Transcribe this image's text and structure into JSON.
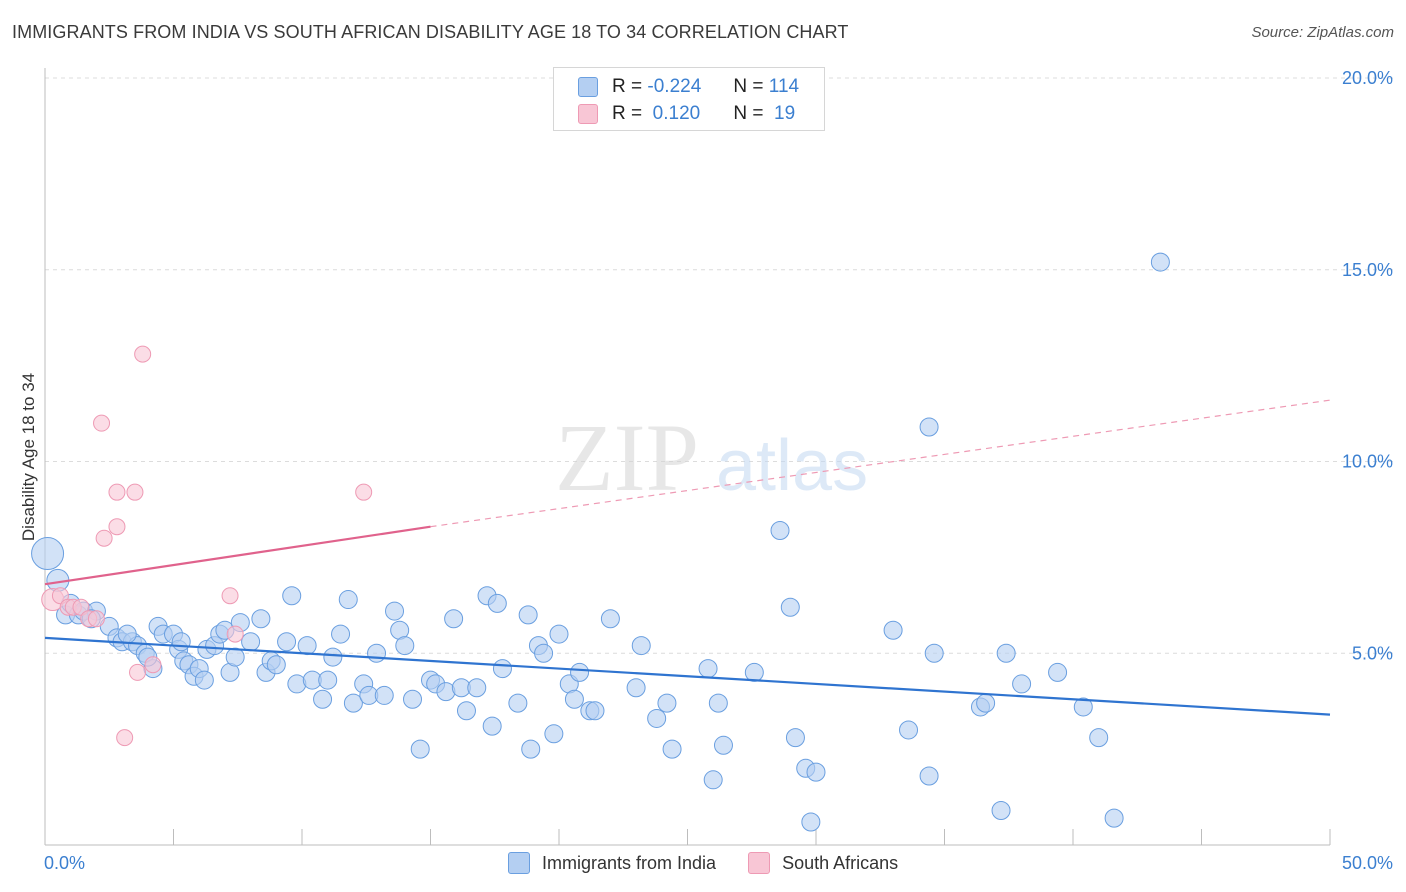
{
  "header": {
    "title": "IMMIGRANTS FROM INDIA VS SOUTH AFRICAN DISABILITY AGE 18 TO 34 CORRELATION CHART",
    "source": "Source: ZipAtlas.com"
  },
  "legend_box": {
    "rows": [
      {
        "r_label": "R =",
        "r_value": "-0.224",
        "n_label": "N =",
        "n_value": "114",
        "color": "#a9c8f0"
      },
      {
        "r_label": "R =",
        "r_value": " 0.120",
        "n_label": "N =",
        "n_value": " 19",
        "color": "#f5b8cb"
      }
    ]
  },
  "bottom_legend": {
    "india": "Immigrants from India",
    "sa": "South Africans"
  },
  "watermark": {
    "zip": "ZIP",
    "atlas": "atlas"
  },
  "chart_data": {
    "type": "scatter",
    "xlabel": "",
    "ylabel": "Disability Age 18 to 34",
    "xlim": [
      0,
      50
    ],
    "ylim": [
      0,
      20
    ],
    "x_tick_labels": [
      "0.0%",
      "50.0%"
    ],
    "y_tick_labels": [
      "5.0%",
      "10.0%",
      "15.0%",
      "20.0%"
    ],
    "y_ticks": [
      5,
      10,
      15,
      20
    ],
    "grid": true,
    "legend_position": "top-center",
    "colors": {
      "india": "#6a9fe0",
      "india_fill": "#b4cff2",
      "india_line": "#2f74d0",
      "sa": "#ee9ab4",
      "sa_fill": "#f8c6d5",
      "sa_line": "#e0628c"
    },
    "series": [
      {
        "name": "Immigrants from India",
        "trend": {
          "x": [
            0,
            50
          ],
          "y": [
            5.4,
            3.4
          ]
        },
        "points": [
          [
            0.1,
            7.6
          ],
          [
            0.5,
            6.9
          ],
          [
            0.8,
            6.0
          ],
          [
            1.0,
            6.3
          ],
          [
            1.3,
            6.0
          ],
          [
            1.5,
            6.1
          ],
          [
            2.0,
            6.1
          ],
          [
            2.5,
            5.7
          ],
          [
            2.8,
            5.4
          ],
          [
            3.0,
            5.3
          ],
          [
            3.4,
            5.3
          ],
          [
            3.6,
            5.2
          ],
          [
            3.9,
            5.0
          ],
          [
            4.2,
            4.6
          ],
          [
            4.4,
            5.7
          ],
          [
            4.6,
            5.5
          ],
          [
            5.0,
            5.5
          ],
          [
            5.2,
            5.1
          ],
          [
            5.4,
            4.8
          ],
          [
            5.6,
            4.7
          ],
          [
            5.8,
            4.4
          ],
          [
            6.0,
            4.6
          ],
          [
            6.3,
            5.1
          ],
          [
            6.6,
            5.2
          ],
          [
            6.8,
            5.5
          ],
          [
            7.0,
            5.6
          ],
          [
            7.2,
            4.5
          ],
          [
            7.4,
            4.9
          ],
          [
            7.6,
            5.8
          ],
          [
            8.0,
            5.3
          ],
          [
            8.4,
            5.9
          ],
          [
            8.6,
            4.5
          ],
          [
            8.8,
            4.8
          ],
          [
            9.0,
            4.7
          ],
          [
            9.4,
            5.3
          ],
          [
            9.6,
            6.5
          ],
          [
            9.8,
            4.2
          ],
          [
            10.2,
            5.2
          ],
          [
            10.4,
            4.3
          ],
          [
            10.8,
            3.8
          ],
          [
            11.0,
            4.3
          ],
          [
            11.2,
            4.9
          ],
          [
            11.5,
            5.5
          ],
          [
            11.8,
            6.4
          ],
          [
            12.0,
            3.7
          ],
          [
            12.4,
            4.2
          ],
          [
            12.6,
            3.9
          ],
          [
            12.9,
            5.0
          ],
          [
            13.2,
            3.9
          ],
          [
            13.6,
            6.1
          ],
          [
            13.8,
            5.6
          ],
          [
            14.0,
            5.2
          ],
          [
            14.3,
            3.8
          ],
          [
            14.6,
            2.5
          ],
          [
            15.0,
            4.3
          ],
          [
            15.2,
            4.2
          ],
          [
            15.6,
            4.0
          ],
          [
            15.9,
            5.9
          ],
          [
            16.2,
            4.1
          ],
          [
            16.4,
            3.5
          ],
          [
            16.8,
            4.1
          ],
          [
            17.2,
            6.5
          ],
          [
            17.4,
            3.1
          ],
          [
            17.6,
            6.3
          ],
          [
            17.8,
            4.6
          ],
          [
            18.4,
            3.7
          ],
          [
            18.8,
            6.0
          ],
          [
            18.9,
            2.5
          ],
          [
            19.2,
            5.2
          ],
          [
            19.4,
            5.0
          ],
          [
            19.8,
            2.9
          ],
          [
            20.0,
            5.5
          ],
          [
            20.4,
            4.2
          ],
          [
            20.6,
            3.8
          ],
          [
            20.8,
            4.5
          ],
          [
            21.2,
            3.5
          ],
          [
            21.4,
            3.5
          ],
          [
            22.0,
            5.9
          ],
          [
            23.0,
            4.1
          ],
          [
            23.2,
            5.2
          ],
          [
            23.8,
            3.3
          ],
          [
            24.2,
            3.7
          ],
          [
            24.4,
            2.5
          ],
          [
            25.8,
            4.6
          ],
          [
            26.0,
            1.7
          ],
          [
            26.2,
            3.7
          ],
          [
            26.4,
            2.6
          ],
          [
            27.6,
            4.5
          ],
          [
            28.6,
            8.2
          ],
          [
            29.0,
            6.2
          ],
          [
            29.2,
            2.8
          ],
          [
            29.6,
            2.0
          ],
          [
            29.8,
            0.6
          ],
          [
            30.0,
            1.9
          ],
          [
            33.0,
            5.6
          ],
          [
            33.6,
            3.0
          ],
          [
            34.4,
            1.8
          ],
          [
            34.4,
            10.9
          ],
          [
            34.6,
            5.0
          ],
          [
            36.4,
            3.6
          ],
          [
            36.6,
            3.7
          ],
          [
            37.2,
            0.9
          ],
          [
            37.4,
            5.0
          ],
          [
            38.0,
            4.2
          ],
          [
            39.4,
            4.5
          ],
          [
            40.4,
            3.6
          ],
          [
            41.0,
            2.8
          ],
          [
            41.6,
            0.7
          ],
          [
            43.4,
            15.2
          ],
          [
            5.3,
            5.3
          ],
          [
            6.2,
            4.3
          ],
          [
            1.8,
            5.9
          ],
          [
            4.0,
            4.9
          ],
          [
            3.2,
            5.5
          ]
        ]
      },
      {
        "name": "South Africans",
        "trend": {
          "x": [
            0,
            15
          ],
          "y": [
            6.8,
            8.3
          ],
          "dash_x": [
            15,
            50
          ],
          "dash_y": [
            8.3,
            11.6
          ]
        },
        "points": [
          [
            0.3,
            6.4
          ],
          [
            0.6,
            6.5
          ],
          [
            0.9,
            6.2
          ],
          [
            1.1,
            6.2
          ],
          [
            1.4,
            6.2
          ],
          [
            1.7,
            5.9
          ],
          [
            2.0,
            5.9
          ],
          [
            2.2,
            11.0
          ],
          [
            2.3,
            8.0
          ],
          [
            2.8,
            8.3
          ],
          [
            2.8,
            9.2
          ],
          [
            3.1,
            2.8
          ],
          [
            3.5,
            9.2
          ],
          [
            3.6,
            4.5
          ],
          [
            3.8,
            12.8
          ],
          [
            4.2,
            4.7
          ],
          [
            7.2,
            6.5
          ],
          [
            7.4,
            5.5
          ],
          [
            12.4,
            9.2
          ]
        ]
      }
    ]
  }
}
